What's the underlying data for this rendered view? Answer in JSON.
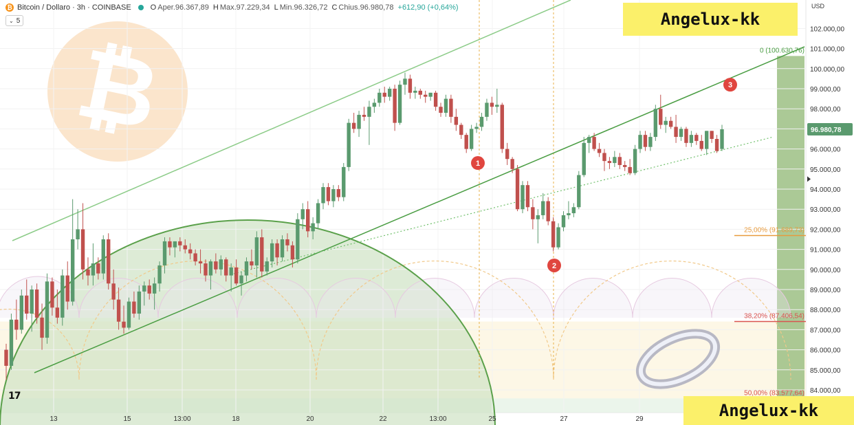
{
  "header": {
    "symbol": "Bitcoin / Dollaro · 3h · COINBASE",
    "open_label": "O",
    "open_value": "Aper.96.367,89",
    "high_label": "H",
    "high_value": "Max.97.229,34",
    "low_label": "L",
    "low_value": "Min.96.326,72",
    "close_label": "C",
    "close_value": "Chius.96.980,78",
    "change": "+612,90 (+0,64%)",
    "indicator_count": "5"
  },
  "watermark_top": "Angelux-kk",
  "watermark_bottom": "Angelux-kk",
  "currency": "USD",
  "tv_logo": "17",
  "colors": {
    "up": "#5a9a6e",
    "down": "#c0504d",
    "channel": "#6fbf6a",
    "fib_25": "#e89a3c",
    "fib_382": "#d9534f",
    "fib_50": "#d9534f",
    "marker": "#e0463f",
    "bitcoin_logo": "#f5cfa3",
    "price_tag": "#5a9a6e"
  },
  "chart_data": {
    "type": "candlestick",
    "title": "Bitcoin / Dollaro · 3h · COINBASE",
    "ylim": [
      83000,
      102800
    ],
    "y_ticks": [
      84000,
      85000,
      86000,
      87000,
      88000,
      89000,
      90000,
      91000,
      92000,
      93000,
      94000,
      95000,
      96000,
      97000,
      98000,
      99000,
      100000,
      101000,
      102000
    ],
    "y_tick_labels": [
      "84.000,00",
      "85.000,00",
      "86.000,00",
      "87.000,00",
      "88.000,00",
      "89.000,00",
      "90.000,00",
      "91.000,00",
      "92.000,00",
      "93.000,00",
      "94.000,00",
      "95.000,00",
      "96.000,00",
      "97.000,00",
      "98.000,00",
      "99.000,00",
      "100.000,00",
      "101.000,00",
      "102.000,00"
    ],
    "x_ticks": [
      "13",
      "15",
      "13:00",
      "18",
      "20",
      "22",
      "13:00",
      "25",
      "27",
      "29"
    ],
    "last_price": 96980.78,
    "last_price_label": "96.980,78",
    "ohlc": [
      [
        86000,
        86300,
        84500,
        85200
      ],
      [
        85200,
        87800,
        85000,
        87500
      ],
      [
        87500,
        88500,
        86500,
        87000
      ],
      [
        87000,
        89000,
        86800,
        88700
      ],
      [
        88700,
        89500,
        87500,
        87800
      ],
      [
        87800,
        89200,
        86900,
        89000
      ],
      [
        89000,
        89300,
        87300,
        87600
      ],
      [
        87600,
        88300,
        86000,
        86600
      ],
      [
        86600,
        89800,
        86300,
        89400
      ],
      [
        89400,
        89600,
        87700,
        88100
      ],
      [
        88100,
        89000,
        87300,
        87600
      ],
      [
        87600,
        90000,
        87200,
        89700
      ],
      [
        89700,
        90400,
        88000,
        88400
      ],
      [
        88400,
        93500,
        88200,
        91500
      ],
      [
        91500,
        93000,
        91000,
        92000
      ],
      [
        92000,
        93300,
        89500,
        90000
      ],
      [
        90000,
        90600,
        89200,
        89700
      ],
      [
        89700,
        91300,
        89200,
        90300
      ],
      [
        90300,
        90600,
        89500,
        89800
      ],
      [
        89800,
        91700,
        89500,
        91500
      ],
      [
        91500,
        91800,
        89000,
        89300
      ],
      [
        89300,
        90000,
        88000,
        88500
      ],
      [
        88500,
        89100,
        87000,
        87400
      ],
      [
        87400,
        88200,
        86800,
        87100
      ],
      [
        87100,
        88600,
        87000,
        88400
      ],
      [
        88400,
        88900,
        87600,
        87800
      ],
      [
        87800,
        89200,
        87500,
        88900
      ],
      [
        88900,
        89400,
        88200,
        89200
      ],
      [
        89200,
        89500,
        88500,
        88800
      ],
      [
        88800,
        89600,
        88000,
        89300
      ],
      [
        89300,
        90400,
        88900,
        90200
      ],
      [
        90200,
        91600,
        89800,
        91400
      ],
      [
        91400,
        91600,
        90700,
        91100
      ],
      [
        91100,
        91400,
        90600,
        91400
      ],
      [
        91400,
        91600,
        90900,
        91200
      ],
      [
        91200,
        91500,
        90800,
        91000
      ],
      [
        91000,
        91300,
        90500,
        90800
      ],
      [
        90800,
        91000,
        90200,
        90400
      ],
      [
        90400,
        91000,
        89800,
        90300
      ],
      [
        90300,
        90500,
        89400,
        89700
      ],
      [
        89700,
        90500,
        89000,
        90400
      ],
      [
        90400,
        90800,
        89800,
        90000
      ],
      [
        90000,
        90700,
        89700,
        90500
      ],
      [
        90500,
        90600,
        89400,
        89700
      ],
      [
        89700,
        90300,
        88900,
        90100
      ],
      [
        90100,
        90500,
        89200,
        89300
      ],
      [
        89300,
        89900,
        88700,
        89700
      ],
      [
        89700,
        90600,
        89400,
        90400
      ],
      [
        90400,
        91000,
        90000,
        90200
      ],
      [
        90200,
        91900,
        89600,
        91600
      ],
      [
        91600,
        92000,
        89600,
        89900
      ],
      [
        89900,
        90600,
        89700,
        90400
      ],
      [
        90400,
        91500,
        90100,
        91300
      ],
      [
        91300,
        91500,
        90200,
        90600
      ],
      [
        90600,
        91700,
        90400,
        91500
      ],
      [
        91500,
        91800,
        90900,
        91200
      ],
      [
        91200,
        91400,
        90100,
        90500
      ],
      [
        90500,
        92800,
        90300,
        92500
      ],
      [
        92500,
        93300,
        92000,
        93000
      ],
      [
        93000,
        93400,
        91600,
        91900
      ],
      [
        91900,
        92600,
        91500,
        92300
      ],
      [
        92300,
        93500,
        92000,
        93300
      ],
      [
        93300,
        94300,
        93000,
        94100
      ],
      [
        94100,
        94300,
        93200,
        93400
      ],
      [
        93400,
        94200,
        93100,
        94000
      ],
      [
        94000,
        94200,
        93400,
        93600
      ],
      [
        93600,
        95300,
        93400,
        95100
      ],
      [
        95100,
        97500,
        94900,
        97300
      ],
      [
        97300,
        97800,
        96800,
        97000
      ],
      [
        97000,
        97900,
        96600,
        97700
      ],
      [
        97700,
        98100,
        97400,
        97600
      ],
      [
        97600,
        98400,
        96200,
        98100
      ],
      [
        98100,
        98500,
        97800,
        98300
      ],
      [
        98300,
        99000,
        98100,
        98800
      ],
      [
        98800,
        99100,
        98300,
        98600
      ],
      [
        98600,
        99100,
        98400,
        99000
      ],
      [
        99000,
        99200,
        96900,
        97300
      ],
      [
        97300,
        99400,
        97200,
        99200
      ],
      [
        99200,
        99800,
        98700,
        99500
      ],
      [
        99500,
        99700,
        98500,
        98800
      ],
      [
        98800,
        99100,
        98500,
        98900
      ],
      [
        98900,
        99000,
        98500,
        98700
      ],
      [
        98700,
        98900,
        98300,
        98600
      ],
      [
        98600,
        98800,
        98400,
        98800
      ],
      [
        98800,
        98900,
        97900,
        98100
      ],
      [
        98100,
        98300,
        97600,
        97800
      ],
      [
        97800,
        98700,
        97600,
        98500
      ],
      [
        98500,
        98700,
        97300,
        97600
      ],
      [
        97600,
        98000,
        96900,
        97200
      ],
      [
        97200,
        97300,
        96500,
        96700
      ],
      [
        96700,
        96800,
        95800,
        96000
      ],
      [
        96000,
        97200,
        95900,
        97000
      ],
      [
        97000,
        97300,
        96800,
        97100
      ],
      [
        97100,
        97800,
        96900,
        97600
      ],
      [
        97600,
        98500,
        97400,
        98300
      ],
      [
        98300,
        98600,
        97700,
        98100
      ],
      [
        98100,
        99000,
        97800,
        98200
      ],
      [
        98200,
        98300,
        95800,
        96000
      ],
      [
        96000,
        96300,
        95200,
        95500
      ],
      [
        95500,
        95600,
        94800,
        95000
      ],
      [
        95000,
        95200,
        92900,
        93000
      ],
      [
        93000,
        94400,
        92800,
        94200
      ],
      [
        94200,
        94400,
        92900,
        93100
      ],
      [
        93100,
        93500,
        92000,
        92500
      ],
      [
        92500,
        93000,
        91300,
        92700
      ],
      [
        92700,
        93800,
        92500,
        93400
      ],
      [
        93400,
        93600,
        92200,
        92400
      ],
      [
        92400,
        92600,
        90900,
        91100
      ],
      [
        91100,
        92300,
        91000,
        92100
      ],
      [
        92100,
        92900,
        91900,
        92700
      ],
      [
        92700,
        93400,
        92500,
        92800
      ],
      [
        92800,
        93300,
        92600,
        93100
      ],
      [
        93100,
        94900,
        93000,
        94700
      ],
      [
        94700,
        96600,
        94600,
        96300
      ],
      [
        96300,
        96700,
        95800,
        96600
      ],
      [
        96600,
        96800,
        95900,
        96000
      ],
      [
        96000,
        96300,
        95600,
        95800
      ],
      [
        95800,
        96000,
        94900,
        95400
      ],
      [
        95400,
        95600,
        95000,
        95300
      ],
      [
        95300,
        95900,
        95100,
        95600
      ],
      [
        95600,
        95800,
        95000,
        95200
      ],
      [
        95200,
        95400,
        94900,
        95100
      ],
      [
        95100,
        95500,
        94700,
        94800
      ],
      [
        94800,
        96200,
        94700,
        96000
      ],
      [
        96000,
        96900,
        95800,
        96700
      ],
      [
        96700,
        96900,
        95900,
        96100
      ],
      [
        96100,
        96800,
        95900,
        96600
      ],
      [
        96600,
        98200,
        96400,
        98000
      ],
      [
        98000,
        98700,
        97000,
        97200
      ],
      [
        97200,
        97600,
        96800,
        97400
      ],
      [
        97400,
        97600,
        97000,
        97100
      ],
      [
        97100,
        97700,
        96300,
        96600
      ],
      [
        96600,
        97100,
        96400,
        97000
      ],
      [
        97000,
        97100,
        96100,
        96300
      ],
      [
        96300,
        96900,
        96100,
        96700
      ],
      [
        96700,
        96800,
        96200,
        96400
      ],
      [
        96400,
        96700,
        95900,
        96000
      ],
      [
        96000,
        96900,
        95700,
        96900
      ],
      [
        96900,
        96900,
        96300,
        96500
      ],
      [
        96500,
        96700,
        95800,
        95900
      ],
      [
        96000,
        97200,
        95900,
        96981
      ]
    ],
    "fib_levels": [
      {
        "label": "0 (100.630,76)",
        "value": 100630.76
      },
      {
        "label": "25,00% (91.689,73)",
        "value": 91689.73
      },
      {
        "label": "38,20% (87.406,54)",
        "value": 87406.54
      },
      {
        "label": "50,00% (83.577,64)",
        "value": 83577.64
      }
    ],
    "markers": [
      {
        "label": "1",
        "value": 95300
      },
      {
        "label": "2",
        "value": 90200
      },
      {
        "label": "3",
        "value": 99200
      }
    ]
  }
}
